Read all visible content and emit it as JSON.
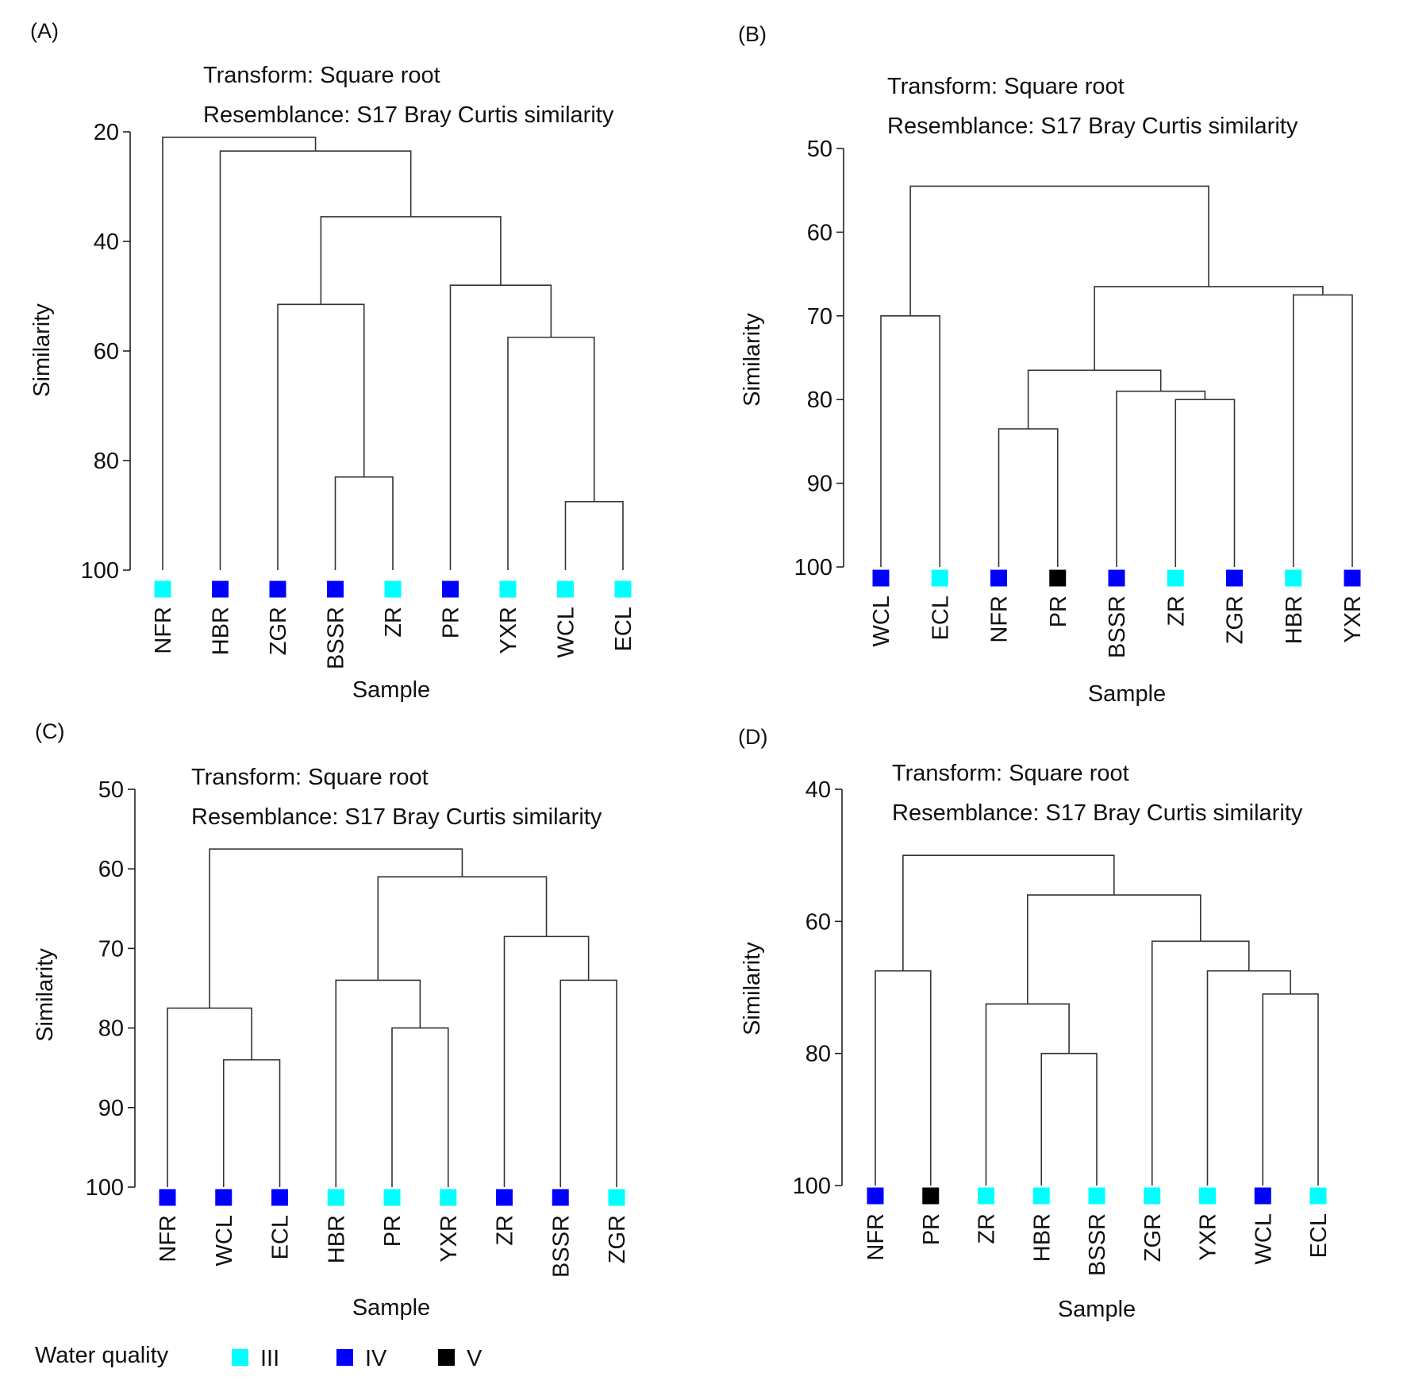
{
  "figure": {
    "legend": {
      "title": "Water quality",
      "items": [
        {
          "label": "III",
          "color": "#00ffff"
        },
        {
          "label": "IV",
          "color": "#0000ff"
        },
        {
          "label": "V",
          "color": "#000000"
        }
      ]
    }
  },
  "chart_data": [
    {
      "type": "dendrogram",
      "panel_label": "(A)",
      "transform_text": "Transform: Square root",
      "resemblance_text": "Resemblance: S17 Bray Curtis similarity",
      "ylabel": "Similarity",
      "xlabel": "Sample",
      "ylim": [
        20,
        100
      ],
      "yticks": [
        20,
        40,
        60,
        80,
        100
      ],
      "leaves": [
        {
          "label": "NFR",
          "quality": "III"
        },
        {
          "label": "HBR",
          "quality": "IV"
        },
        {
          "label": "ZGR",
          "quality": "IV"
        },
        {
          "label": "BSSR",
          "quality": "IV"
        },
        {
          "label": "ZR",
          "quality": "III"
        },
        {
          "label": "PR",
          "quality": "IV"
        },
        {
          "label": "YXR",
          "quality": "III"
        },
        {
          "label": "WCL",
          "quality": "III"
        },
        {
          "label": "ECL",
          "quality": "III"
        }
      ],
      "merges": [
        {
          "a": 3,
          "b": 4,
          "similarity": 83
        },
        {
          "a": 7,
          "b": 8,
          "similarity": 87.5
        },
        {
          "a": 6,
          "b": 10,
          "similarity": 57.5
        },
        {
          "a": 2,
          "b": 9,
          "similarity": 51.5
        },
        {
          "a": 5,
          "b": 11,
          "similarity": 48
        },
        {
          "a": 12,
          "b": 13,
          "similarity": 35.5
        },
        {
          "a": 1,
          "b": 14,
          "similarity": 23.5
        },
        {
          "a": 0,
          "b": 15,
          "similarity": 21
        }
      ]
    },
    {
      "type": "dendrogram",
      "panel_label": "(B)",
      "transform_text": "Transform: Square root",
      "resemblance_text": "Resemblance: S17 Bray Curtis similarity",
      "ylabel": "Similarity",
      "xlabel": "Sample",
      "ylim": [
        50,
        100
      ],
      "yticks": [
        50,
        60,
        70,
        80,
        90,
        100
      ],
      "leaves": [
        {
          "label": "WCL",
          "quality": "IV"
        },
        {
          "label": "ECL",
          "quality": "III"
        },
        {
          "label": "NFR",
          "quality": "IV"
        },
        {
          "label": "PR",
          "quality": "V"
        },
        {
          "label": "BSSR",
          "quality": "IV"
        },
        {
          "label": "ZR",
          "quality": "III"
        },
        {
          "label": "ZGR",
          "quality": "IV"
        },
        {
          "label": "HBR",
          "quality": "III"
        },
        {
          "label": "YXR",
          "quality": "IV"
        }
      ],
      "merges": [
        {
          "a": 0,
          "b": 1,
          "similarity": 70
        },
        {
          "a": 2,
          "b": 3,
          "similarity": 83.5
        },
        {
          "a": 5,
          "b": 6,
          "similarity": 80
        },
        {
          "a": 4,
          "b": 11,
          "similarity": 79
        },
        {
          "a": 10,
          "b": 12,
          "similarity": 76.5
        },
        {
          "a": 7,
          "b": 8,
          "similarity": 67.5
        },
        {
          "a": 13,
          "b": 14,
          "similarity": 66.5
        },
        {
          "a": 9,
          "b": 15,
          "similarity": 54.5
        }
      ]
    },
    {
      "type": "dendrogram",
      "panel_label": "(C)",
      "transform_text": "Transform: Square root",
      "resemblance_text": "Resemblance: S17 Bray Curtis similarity",
      "ylabel": "Similarity",
      "xlabel": "Sample",
      "ylim": [
        50,
        100
      ],
      "yticks": [
        50,
        60,
        70,
        80,
        90,
        100
      ],
      "leaves": [
        {
          "label": "NFR",
          "quality": "IV"
        },
        {
          "label": "WCL",
          "quality": "IV"
        },
        {
          "label": "ECL",
          "quality": "IV"
        },
        {
          "label": "HBR",
          "quality": "III"
        },
        {
          "label": "PR",
          "quality": "III"
        },
        {
          "label": "YXR",
          "quality": "III"
        },
        {
          "label": "ZR",
          "quality": "IV"
        },
        {
          "label": "BSSR",
          "quality": "IV"
        },
        {
          "label": "ZGR",
          "quality": "III"
        }
      ],
      "merges": [
        {
          "a": 1,
          "b": 2,
          "similarity": 84
        },
        {
          "a": 0,
          "b": 9,
          "similarity": 77.5
        },
        {
          "a": 4,
          "b": 5,
          "similarity": 80
        },
        {
          "a": 3,
          "b": 11,
          "similarity": 74
        },
        {
          "a": 7,
          "b": 8,
          "similarity": 74
        },
        {
          "a": 6,
          "b": 13,
          "similarity": 68.5
        },
        {
          "a": 12,
          "b": 14,
          "similarity": 61
        },
        {
          "a": 10,
          "b": 15,
          "similarity": 57.5
        }
      ]
    },
    {
      "type": "dendrogram",
      "panel_label": "(D)",
      "transform_text": "Transform: Square root",
      "resemblance_text": "Resemblance: S17 Bray Curtis similarity",
      "ylabel": "Similarity",
      "xlabel": "Sample",
      "ylim": [
        40,
        100
      ],
      "yticks": [
        40,
        60,
        80,
        100
      ],
      "leaves": [
        {
          "label": "NFR",
          "quality": "IV"
        },
        {
          "label": "PR",
          "quality": "V"
        },
        {
          "label": "ZR",
          "quality": "III"
        },
        {
          "label": "HBR",
          "quality": "III"
        },
        {
          "label": "BSSR",
          "quality": "III"
        },
        {
          "label": "ZGR",
          "quality": "III"
        },
        {
          "label": "YXR",
          "quality": "III"
        },
        {
          "label": "WCL",
          "quality": "IV"
        },
        {
          "label": "ECL",
          "quality": "III"
        }
      ],
      "merges": [
        {
          "a": 0,
          "b": 1,
          "similarity": 67.5
        },
        {
          "a": 3,
          "b": 4,
          "similarity": 80
        },
        {
          "a": 2,
          "b": 10,
          "similarity": 72.5
        },
        {
          "a": 7,
          "b": 8,
          "similarity": 71
        },
        {
          "a": 6,
          "b": 12,
          "similarity": 67.5
        },
        {
          "a": 5,
          "b": 13,
          "similarity": 63
        },
        {
          "a": 11,
          "b": 14,
          "similarity": 56
        },
        {
          "a": 9,
          "b": 15,
          "similarity": 50
        }
      ]
    }
  ]
}
